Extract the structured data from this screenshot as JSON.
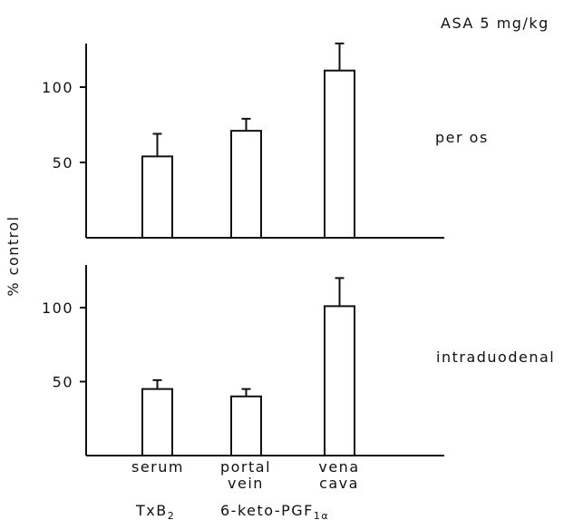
{
  "header": {
    "dose_label": "ASA 5 mg/kg"
  },
  "y_axis_label": "% control",
  "panels": [
    {
      "id": "top",
      "route_label": "per os"
    },
    {
      "id": "bottom",
      "route_label": "intraduodenal"
    }
  ],
  "categories": [
    {
      "line1": "serum",
      "line2": ""
    },
    {
      "line1": "portal",
      "line2": "vein"
    },
    {
      "line1": "vena",
      "line2": "cava"
    }
  ],
  "footer": {
    "txb2_base": "TxB",
    "txb2_sub": "2",
    "pgf_base": "6-keto-PGF",
    "pgf_sub": "1α"
  },
  "chart_data": [
    {
      "type": "bar",
      "panel": "per os",
      "categories": [
        "serum",
        "portal vein",
        "vena cava"
      ],
      "series": [
        {
          "values": [
            54,
            71,
            111
          ],
          "error_upper": [
            15,
            8,
            18
          ]
        }
      ],
      "ylabel": "% control",
      "yticks": [
        50,
        100
      ],
      "ylim": [
        0,
        130
      ]
    },
    {
      "type": "bar",
      "panel": "intraduodenal",
      "categories": [
        "serum",
        "portal vein",
        "vena cava"
      ],
      "series": [
        {
          "values": [
            45,
            40,
            101
          ],
          "error_upper": [
            6,
            5,
            19
          ]
        }
      ],
      "ylabel": "% control",
      "yticks": [
        50,
        100
      ],
      "ylim": [
        0,
        130
      ]
    }
  ]
}
